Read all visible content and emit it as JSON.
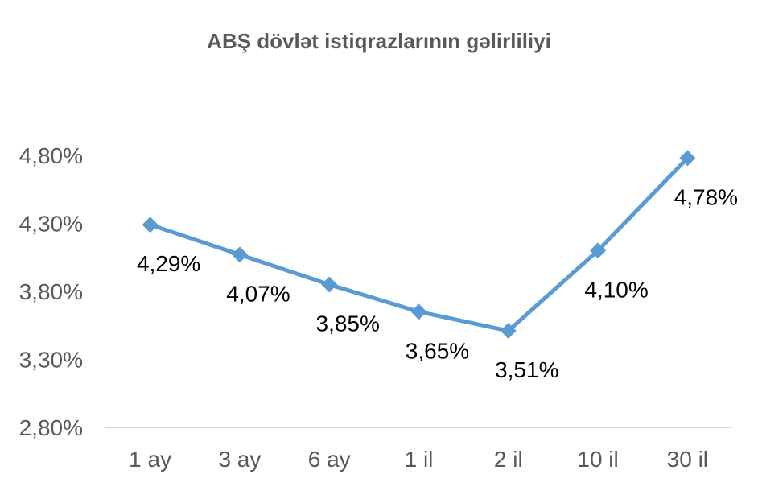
{
  "chart_data": {
    "type": "line",
    "title": "ABŞ dövlət istiqrazlarının gəlirliliyi",
    "categories": [
      "1 ay",
      "3 ay",
      "6 ay",
      "1 il",
      "2 il",
      "10 il",
      "30 il"
    ],
    "series": [
      {
        "values": [
          4.29,
          4.07,
          3.85,
          3.65,
          3.51,
          4.1,
          4.78
        ],
        "color": "#5B9BD5",
        "marker": "diamond"
      }
    ],
    "data_labels": [
      "4,29%",
      "4,07%",
      "3,85%",
      "3,65%",
      "3,51%",
      "4,10%",
      "4,78%"
    ],
    "y_ticks": [
      2.8,
      3.3,
      3.8,
      4.3,
      4.8
    ],
    "y_tick_labels": [
      "2,80%",
      "3,30%",
      "3,80%",
      "4,30%",
      "4,80%"
    ],
    "ylim": [
      2.8,
      4.8
    ],
    "grid": false,
    "legend": "none"
  }
}
